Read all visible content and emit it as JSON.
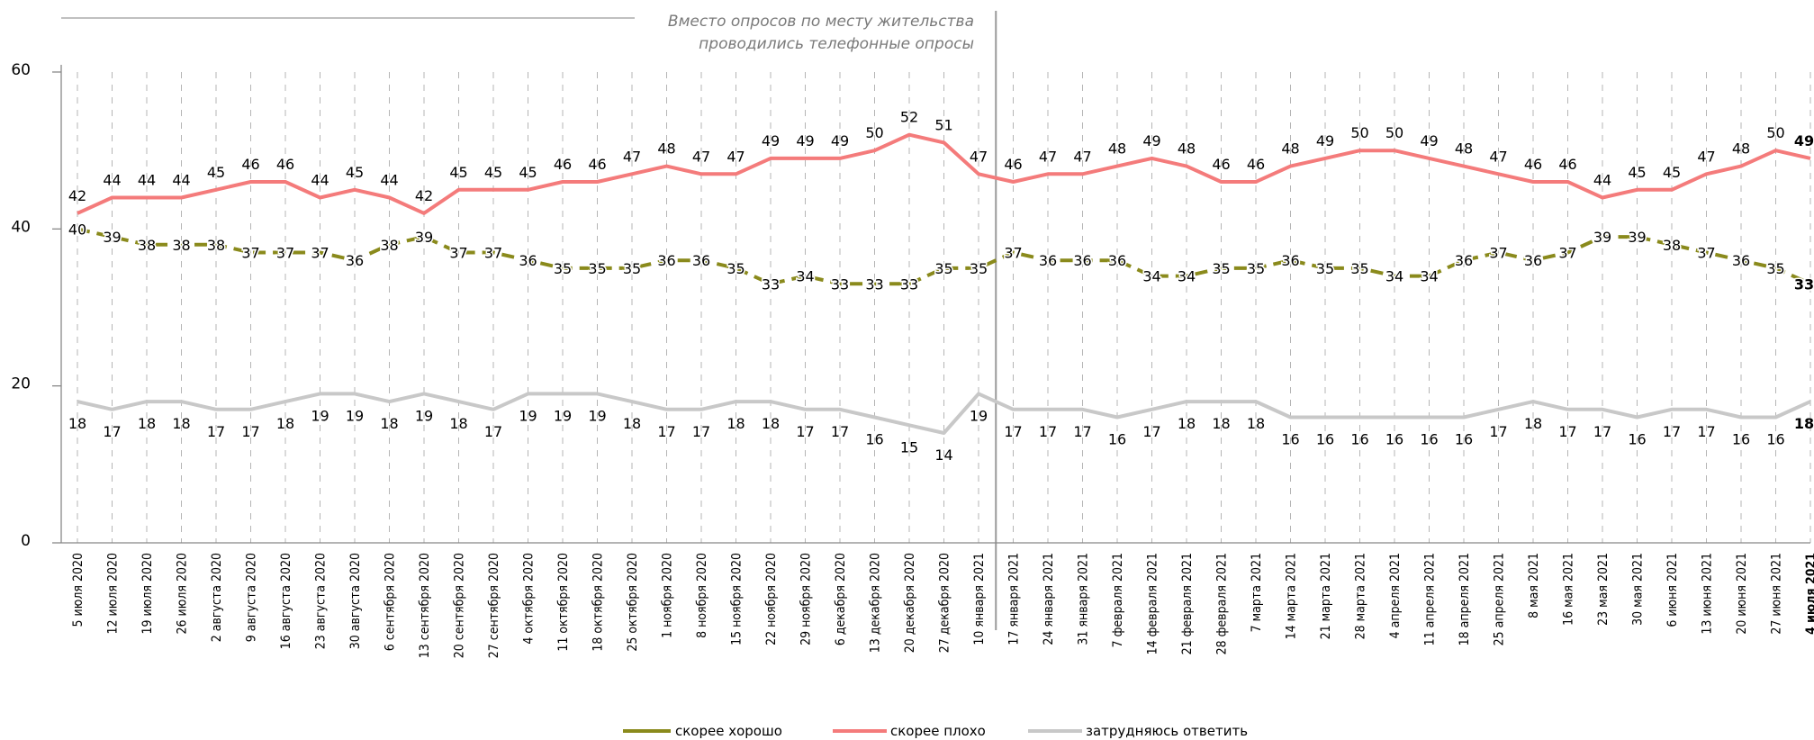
{
  "colors": {
    "good": "#8a8a1c",
    "bad": "#f47b7b",
    "hard": "#c8c8c8",
    "grid": "#b5b5b5",
    "axis": "#888888",
    "divider": "#9a9a9a"
  },
  "annotation": {
    "line1": "Вместо опросов по месту жительства",
    "line2": "проводились телефонные опросы"
  },
  "chart_data": {
    "type": "line",
    "x": [
      "5 июля 2020",
      "12 июля 2020",
      "19 июля 2020",
      "26 июля 2020",
      "2 августа 2020",
      "9 августа 2020",
      "16 августа 2020",
      "23 августа 2020",
      "30 августа 2020",
      "6 сентября 2020",
      "13 сентября 2020",
      "20 сентября 2020",
      "27 сентября 2020",
      "4 октября 2020",
      "11 октября 2020",
      "18 октября 2020",
      "25 октября 2020",
      "1 ноября 2020",
      "8 ноября 2020",
      "15 ноября 2020",
      "22 ноября 2020",
      "29 ноября 2020",
      "6 декабря 2020",
      "13 декабря 2020",
      "20 декабря 2020",
      "27 декабря 2020",
      "10 января 2021",
      "17 января 2021",
      "24 января 2021",
      "31 января 2021",
      "7 февраля 2021",
      "14 февраля 2021",
      "21 февраля 2021",
      "28 февраля 2021",
      "7 марта 2021",
      "14 марта 2021",
      "21 марта 2021",
      "28 марта 2021",
      "4 апреля 2021",
      "11 апреля 2021",
      "18 апреля 2021",
      "25 апреля 2021",
      "8 мая 2021",
      "16 мая 2021",
      "23 мая 2021",
      "30 мая 2021",
      "6 июня 2021",
      "13 июня 2021",
      "20 июня 2021",
      "27 июня 2021",
      "4 июля 2021"
    ],
    "ylim": [
      0,
      60
    ],
    "yticks": [
      0,
      20,
      40,
      60
    ],
    "divider_after_index": 26,
    "series": [
      {
        "name": "скорее хорошо",
        "style": "dashed",
        "values": [
          40,
          39,
          38,
          38,
          38,
          37,
          37,
          37,
          36,
          38,
          39,
          37,
          37,
          36,
          35,
          35,
          35,
          36,
          36,
          35,
          33,
          34,
          33,
          33,
          33,
          35,
          35,
          37,
          36,
          36,
          36,
          34,
          34,
          35,
          35,
          36,
          35,
          35,
          34,
          34,
          36,
          37,
          36,
          37,
          39,
          39,
          38,
          37,
          36,
          35,
          33
        ]
      },
      {
        "name": "скорее плохо",
        "style": "solid",
        "values": [
          42,
          44,
          44,
          44,
          45,
          46,
          46,
          44,
          45,
          44,
          42,
          45,
          45,
          45,
          46,
          46,
          47,
          48,
          47,
          47,
          49,
          49,
          49,
          50,
          52,
          51,
          47,
          46,
          47,
          47,
          48,
          49,
          48,
          46,
          46,
          48,
          49,
          50,
          50,
          49,
          48,
          47,
          46,
          46,
          44,
          45,
          45,
          47,
          48,
          50,
          49
        ]
      },
      {
        "name": "затрудняюсь ответить",
        "style": "solid",
        "values": [
          18,
          17,
          18,
          18,
          17,
          17,
          18,
          19,
          19,
          18,
          19,
          18,
          17,
          19,
          19,
          19,
          18,
          17,
          17,
          18,
          18,
          17,
          17,
          16,
          15,
          14,
          19,
          17,
          17,
          17,
          16,
          17,
          18,
          18,
          18,
          16,
          16,
          16,
          16,
          16,
          16,
          17,
          18,
          17,
          17,
          16,
          17,
          17,
          16,
          16,
          18
        ]
      }
    ],
    "legend": [
      "скорее хорошо",
      "скорее плохо",
      "затрудняюсь ответить"
    ],
    "legend_position": "bottom-center"
  }
}
